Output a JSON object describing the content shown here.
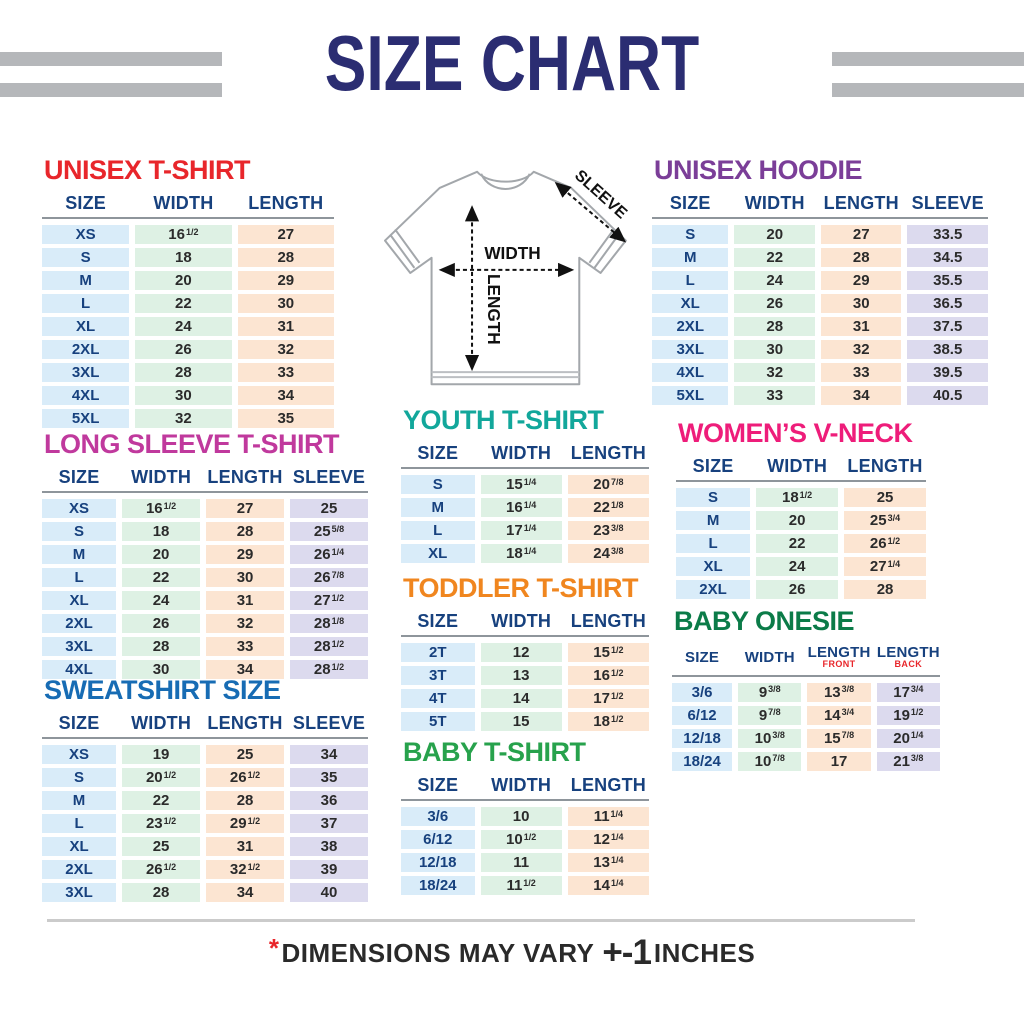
{
  "header": {
    "title": "SIZE CHART"
  },
  "diagram": {
    "width_label": "WIDTH",
    "length_label": "LENGTH",
    "sleeve_label": "SLEEVE"
  },
  "footer": {
    "asterisk": "*",
    "text": "DIMENSIONS MAY VARY",
    "tolerance": "+-1",
    "unit": "INCHES"
  },
  "colors": {
    "title_navy": "#2b2d72",
    "accent_red": "#e8262b",
    "header_text_navy": "#17417e",
    "stripe_gray": "#b5b7ba",
    "size_col_bg": "#d9ecf9",
    "width_col_bg": "#def1e4",
    "length_col_bg": "#fce5d2",
    "sleeve_col_bg": "#dcdaee"
  },
  "chart_data": [
    {
      "type": "table",
      "id": "unisex-t-shirt",
      "title": "UNISEX T-SHIRT",
      "title_color": "#e8262b",
      "columns": [
        "SIZE",
        "WIDTH",
        "LENGTH"
      ],
      "rows": [
        [
          "XS",
          "16^1/2",
          "27"
        ],
        [
          "S",
          "18",
          "28"
        ],
        [
          "M",
          "20",
          "29"
        ],
        [
          "L",
          "22",
          "30"
        ],
        [
          "XL",
          "24",
          "31"
        ],
        [
          "2XL",
          "26",
          "32"
        ],
        [
          "3XL",
          "28",
          "33"
        ],
        [
          "4XL",
          "30",
          "34"
        ],
        [
          "5XL",
          "32",
          "35"
        ]
      ]
    },
    {
      "type": "table",
      "id": "long-sleeve-t-shirt",
      "title": "LONG SLEEVE T-SHIRT",
      "title_color": "#c0399d",
      "columns": [
        "SIZE",
        "WIDTH",
        "LENGTH",
        "SLEEVE"
      ],
      "rows": [
        [
          "XS",
          "16^1/2",
          "27",
          "25"
        ],
        [
          "S",
          "18",
          "28",
          "25^5/8"
        ],
        [
          "M",
          "20",
          "29",
          "26^1/4"
        ],
        [
          "L",
          "22",
          "30",
          "26^7/8"
        ],
        [
          "XL",
          "24",
          "31",
          "27^1/2"
        ],
        [
          "2XL",
          "26",
          "32",
          "28^1/8"
        ],
        [
          "3XL",
          "28",
          "33",
          "28^1/2"
        ],
        [
          "4XL",
          "30",
          "34",
          "28^1/2"
        ]
      ]
    },
    {
      "type": "table",
      "id": "sweatshirt-size",
      "title": "SWEATSHIRT SIZE",
      "title_color": "#176cb4",
      "columns": [
        "SIZE",
        "WIDTH",
        "LENGTH",
        "SLEEVE"
      ],
      "rows": [
        [
          "XS",
          "19",
          "25",
          "34"
        ],
        [
          "S",
          "20^1/2",
          "26^1/2",
          "35"
        ],
        [
          "M",
          "22",
          "28",
          "36"
        ],
        [
          "L",
          "23^1/2",
          "29^1/2",
          "37"
        ],
        [
          "XL",
          "25",
          "31",
          "38"
        ],
        [
          "2XL",
          "26^1/2",
          "32^1/2",
          "39"
        ],
        [
          "3XL",
          "28",
          "34",
          "40"
        ]
      ]
    },
    {
      "type": "table",
      "id": "youth-t-shirt",
      "title": "YOUTH T-SHIRT",
      "title_color": "#12a79b",
      "columns": [
        "SIZE",
        "WIDTH",
        "LENGTH"
      ],
      "rows": [
        [
          "S",
          "15^1/4",
          "20^7/8"
        ],
        [
          "M",
          "16^1/4",
          "22^1/8"
        ],
        [
          "L",
          "17^1/4",
          "23^3/8"
        ],
        [
          "XL",
          "18^1/4",
          "24^3/8"
        ]
      ]
    },
    {
      "type": "table",
      "id": "toddler-t-shirt",
      "title": "TODDLER T-SHIRT",
      "title_color": "#f0861f",
      "columns": [
        "SIZE",
        "WIDTH",
        "LENGTH"
      ],
      "rows": [
        [
          "2T",
          "12",
          "15^1/2"
        ],
        [
          "3T",
          "13",
          "16^1/2"
        ],
        [
          "4T",
          "14",
          "17^1/2"
        ],
        [
          "5T",
          "15",
          "18^1/2"
        ]
      ]
    },
    {
      "type": "table",
      "id": "baby-t-shirt",
      "title": "BABY T-SHIRT",
      "title_color": "#27a24c",
      "columns": [
        "SIZE",
        "WIDTH",
        "LENGTH"
      ],
      "rows": [
        [
          "3/6",
          "10",
          "11^1/4"
        ],
        [
          "6/12",
          "10^1/2",
          "12^1/4"
        ],
        [
          "12/18",
          "11",
          "13^1/4"
        ],
        [
          "18/24",
          "11^1/2",
          "14^1/4"
        ]
      ]
    },
    {
      "type": "table",
      "id": "unisex-hoodie",
      "title": "UNISEX HOODIE",
      "title_color": "#7b3e98",
      "columns": [
        "SIZE",
        "WIDTH",
        "LENGTH",
        "SLEEVE"
      ],
      "rows": [
        [
          "S",
          "20",
          "27",
          "33.5"
        ],
        [
          "M",
          "22",
          "28",
          "34.5"
        ],
        [
          "L",
          "24",
          "29",
          "35.5"
        ],
        [
          "XL",
          "26",
          "30",
          "36.5"
        ],
        [
          "2XL",
          "28",
          "31",
          "37.5"
        ],
        [
          "3XL",
          "30",
          "32",
          "38.5"
        ],
        [
          "4XL",
          "32",
          "33",
          "39.5"
        ],
        [
          "5XL",
          "33",
          "34",
          "40.5"
        ]
      ]
    },
    {
      "type": "table",
      "id": "womens-v-neck",
      "title": "WOMEN’S V-NECK",
      "title_color": "#ee1d7a",
      "columns": [
        "SIZE",
        "WIDTH",
        "LENGTH"
      ],
      "rows": [
        [
          "S",
          "18^1/2",
          "25"
        ],
        [
          "M",
          "20",
          "25^3/4"
        ],
        [
          "L",
          "22",
          "26^1/2"
        ],
        [
          "XL",
          "24",
          "27^1/4"
        ],
        [
          "2XL",
          "26",
          "28"
        ]
      ]
    },
    {
      "type": "table",
      "id": "baby-onesie",
      "title": "BABY ONESIE",
      "title_color": "#0b7b48",
      "compact_header": true,
      "columns": [
        "SIZE",
        "WIDTH",
        {
          "label": "LENGTH",
          "sub": "FRONT"
        },
        {
          "label": "LENGTH",
          "sub": "BACK"
        }
      ],
      "rows": [
        [
          "3/6",
          "9^3/8",
          "13^3/8",
          "17^3/4"
        ],
        [
          "6/12",
          "9^7/8",
          "14^3/4",
          "19^1/2"
        ],
        [
          "12/18",
          "10^3/8",
          "15^7/8",
          "20^1/4"
        ],
        [
          "18/24",
          "10^7/8",
          "17",
          "21^3/8"
        ]
      ]
    }
  ]
}
